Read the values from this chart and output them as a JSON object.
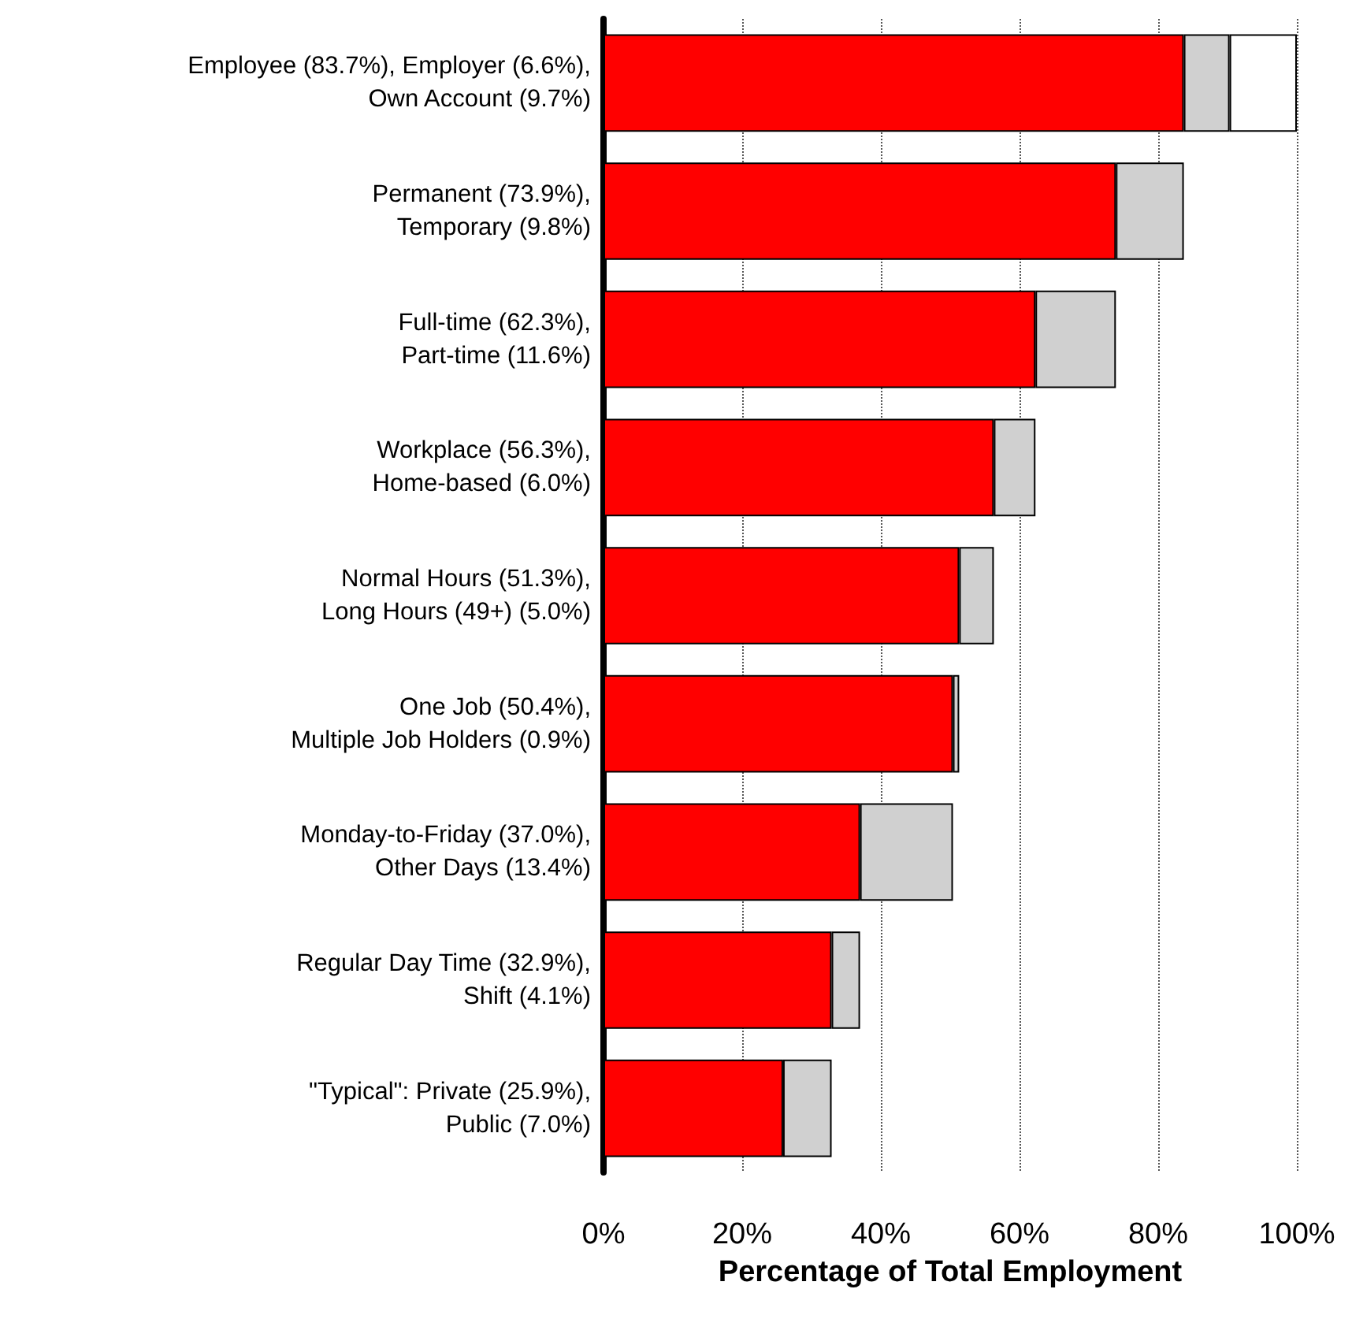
{
  "chart_data": {
    "type": "bar",
    "orientation": "horizontal",
    "stacked": true,
    "xlabel": "Percentage of Total Employment",
    "categories": [
      "Employee (83.7%), Employer (6.6%),\nOwn Account (9.7%)",
      "Permanent (73.9%),\nTemporary (9.8%)",
      "Full-time (62.3%),\nPart-time (11.6%)",
      "Workplace (56.3%),\nHome-based (6.0%)",
      "Normal Hours (51.3%),\nLong Hours (49+) (5.0%)",
      "One Job (50.4%),\nMultiple Job Holders (0.9%)",
      "Monday-to-Friday (37.0%),\nOther Days (13.4%)",
      "Regular Day Time (32.9%),\nShift (4.1%)",
      "\"Typical\": Private (25.9%),\nPublic (7.0%)"
    ],
    "series": [
      {
        "color": "#ff0000",
        "values": [
          83.7,
          73.9,
          62.3,
          56.3,
          51.3,
          50.4,
          37.0,
          32.9,
          25.9
        ]
      },
      {
        "color": "#d0d0d0",
        "values": [
          6.6,
          9.8,
          11.6,
          6.0,
          5.0,
          0.9,
          13.4,
          4.1,
          7.0
        ]
      },
      {
        "color": "#ffffff",
        "values": [
          9.7,
          null,
          null,
          null,
          null,
          null,
          null,
          null,
          null
        ]
      }
    ],
    "xlim": [
      0,
      100
    ],
    "xticks": [
      {
        "value": 0,
        "label": "0%"
      },
      {
        "value": 20,
        "label": "20%"
      },
      {
        "value": 40,
        "label": "40%"
      },
      {
        "value": 60,
        "label": "60%"
      },
      {
        "value": 80,
        "label": "80%"
      },
      {
        "value": 100,
        "label": "100%"
      }
    ],
    "grid": "x"
  }
}
